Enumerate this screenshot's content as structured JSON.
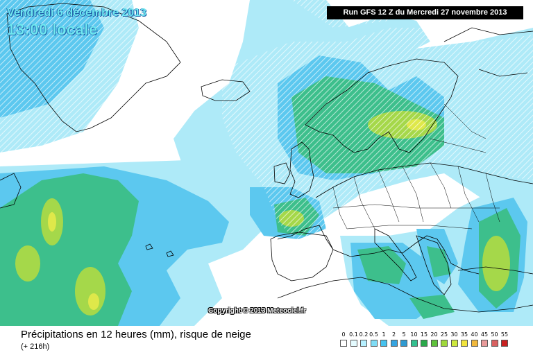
{
  "header": {
    "date": "Vendredi 6 décembre 2013",
    "time": "13:00 locale",
    "run": "Run GFS 12 Z du Mercredi 27 novembre 2013"
  },
  "copyright": "Copyright © 2013 Meteociel.fr",
  "footer": {
    "title": "Précipitations en 12 heures (mm), risque de neige",
    "lead": "(+ 216h)"
  },
  "legend": {
    "labels": [
      "0",
      "0.1",
      "0.2",
      "0.5",
      "1",
      "2",
      "5",
      "10",
      "15",
      "20",
      "25",
      "30",
      "35",
      "40",
      "45",
      "50",
      "55"
    ],
    "colors": [
      "#ffffff",
      "#e4fbff",
      "#b6f0ff",
      "#7fdcf5",
      "#46c2ee",
      "#35a4e0",
      "#2f9ad0",
      "#33c08f",
      "#2aa84a",
      "#5fc23a",
      "#9fd83a",
      "#cde83c",
      "#f1e43c",
      "#f0b83c",
      "#e89a9a",
      "#d86060",
      "#c82020"
    ]
  },
  "colors": {
    "ocean_free": "#ffffff",
    "precip_light": "#b6f0ff",
    "precip_mid": "#46c2ee",
    "precip_green": "#33c08f",
    "precip_lime": "#9fd83a",
    "snow_hatch": "#ffffff"
  }
}
